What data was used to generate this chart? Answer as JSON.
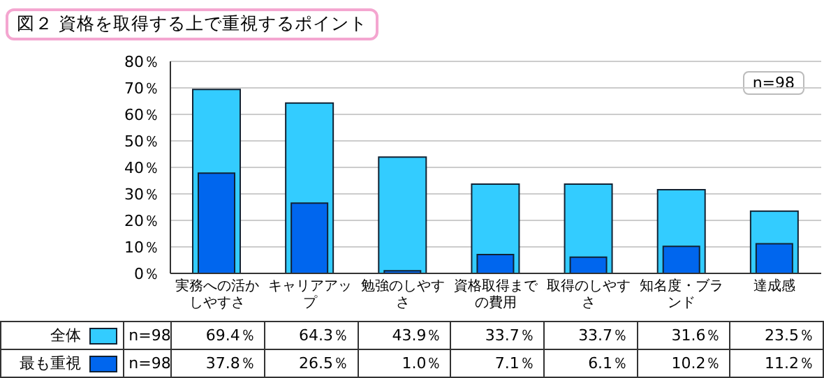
{
  "chart_data": {
    "type": "bar",
    "title": "図２ 資格を取得する上で重視するポイント",
    "categories": [
      "実務への活かしやすさ",
      "キャリアアップ",
      "勉強のしやすさ",
      "資格取得までの費用",
      "取得のしやすさ",
      "知名度・ブランド",
      "達成感"
    ],
    "series": [
      {
        "name": "全体",
        "color": "#33ccff",
        "values": [
          69.4,
          64.3,
          43.9,
          33.7,
          33.7,
          31.6,
          23.5
        ],
        "value_labels": [
          "69.4％",
          "64.3％",
          "43.9％",
          "33.7％",
          "33.7％",
          "31.6％",
          "23.5％"
        ]
      },
      {
        "name": "最も重視",
        "color": "#0066ee",
        "values": [
          37.8,
          26.5,
          1.0,
          7.1,
          6.1,
          10.2,
          11.2
        ],
        "value_labels": [
          "37.8％",
          "26.5％",
          "1.0％",
          "7.1％",
          "6.1％",
          "10.2％",
          "11.2％"
        ]
      }
    ],
    "ylim": [
      0,
      80
    ],
    "yticks": [
      {
        "value": 0,
        "label": "0％"
      },
      {
        "value": 10,
        "label": "10％"
      },
      {
        "value": 20,
        "label": "20％"
      },
      {
        "value": 30,
        "label": "30％"
      },
      {
        "value": 40,
        "label": "40％"
      },
      {
        "value": 50,
        "label": "50％"
      },
      {
        "value": 60,
        "label": "60％"
      },
      {
        "value": 70,
        "label": "70％"
      },
      {
        "value": 80,
        "label": "80％"
      }
    ],
    "grid": "y",
    "legend": "bottom left",
    "annotations": [
      "n=98",
      "n=98",
      "n=98"
    ]
  }
}
